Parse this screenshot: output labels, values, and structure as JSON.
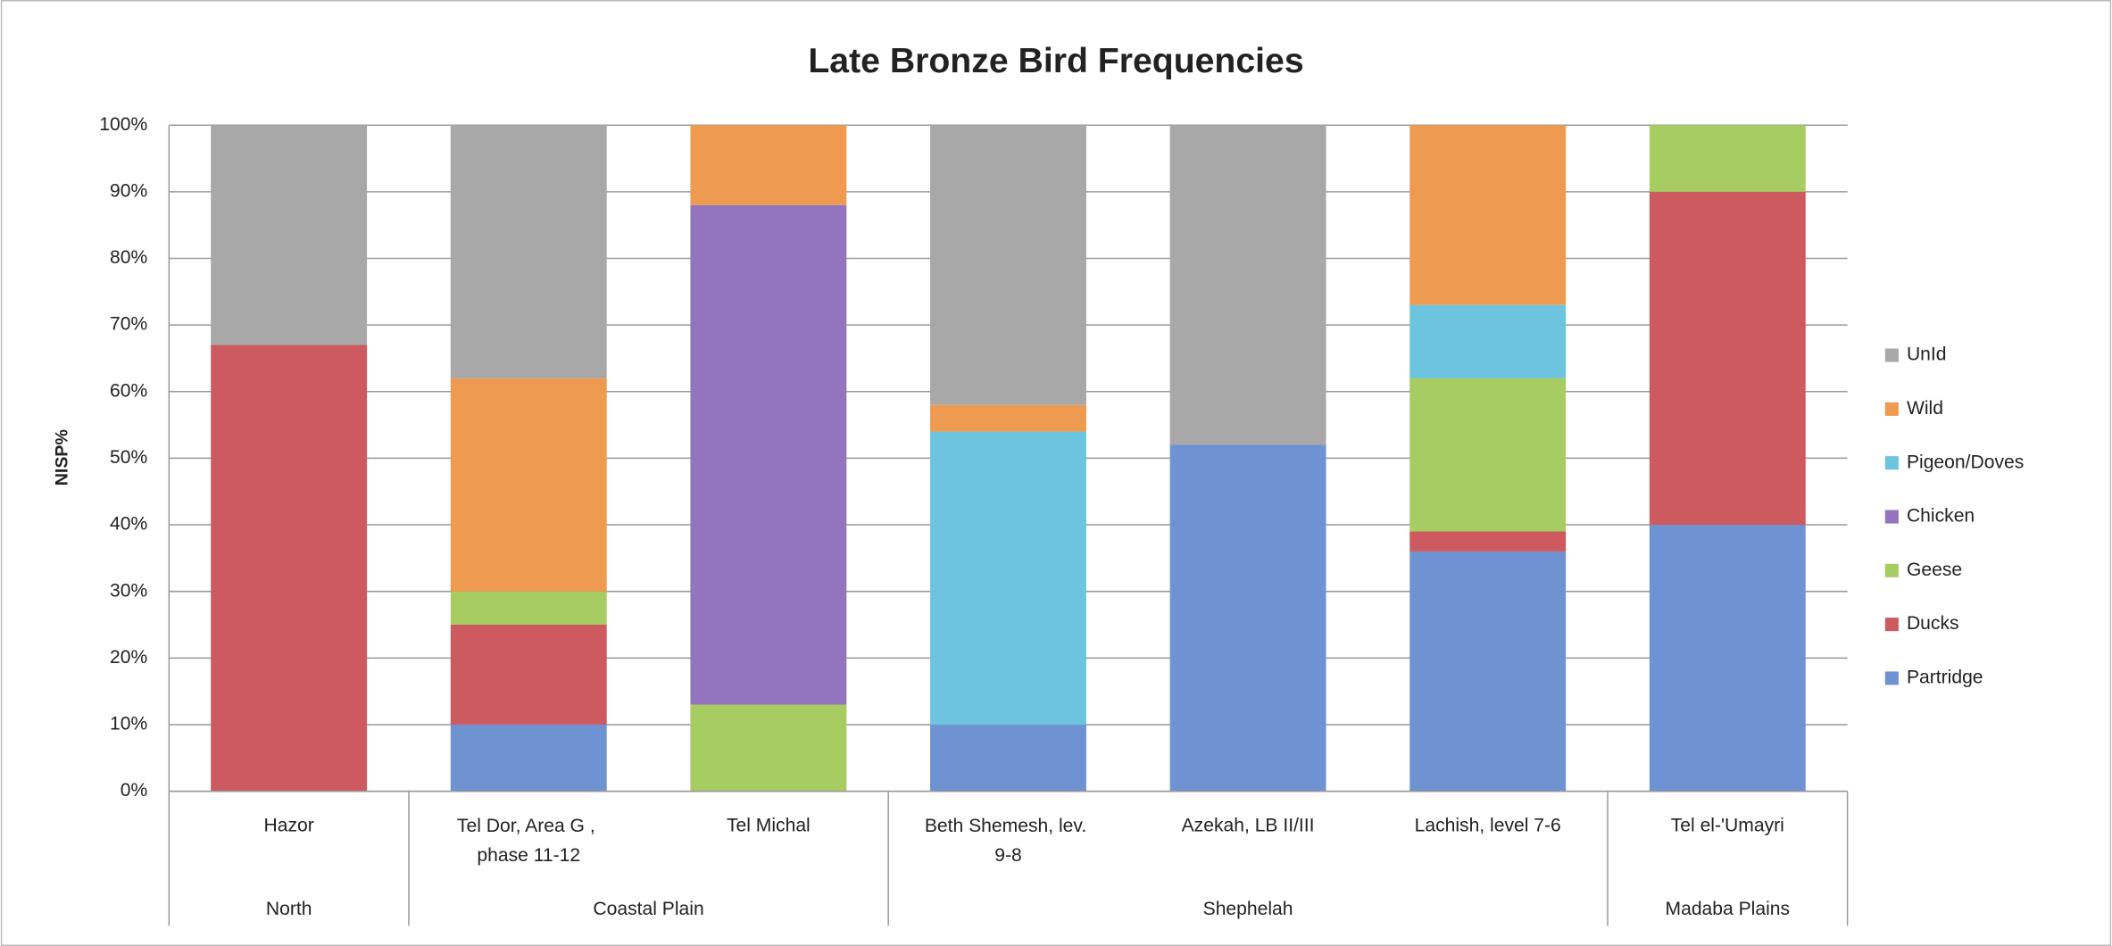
{
  "chart_data": {
    "type": "stacked_bar",
    "title": "Late Bronze Bird Frequencies",
    "y_label": "NISP%",
    "categories": [
      "Hazor",
      "Tel Dor, Area G , phase 11-12",
      "Tel Michal",
      "Beth Shemesh, lev. 9-8",
      "Azekah, LB II/III",
      "Lachish, level 7-6",
      "Tel el-'Umayri"
    ],
    "category_groups": [
      "North",
      "Coastal Plain",
      "Coastal Plain",
      "Shephelah",
      "Shephelah",
      "Shephelah",
      "Madaba Plains"
    ],
    "series": [
      {
        "name": "Partridge",
        "color": "#6f92d2",
        "values": [
          0,
          10,
          0,
          10,
          52,
          36,
          40
        ]
      },
      {
        "name": "Ducks",
        "color": "#cc5a5e",
        "values": [
          67,
          15,
          0,
          0,
          0,
          3,
          50
        ]
      },
      {
        "name": "Geese",
        "color": "#a6cc62",
        "values": [
          0,
          5,
          13,
          0,
          0,
          23,
          10
        ]
      },
      {
        "name": "Chicken",
        "color": "#9275bd",
        "values": [
          0,
          0,
          75,
          0,
          0,
          0,
          0
        ]
      },
      {
        "name": "Pigeon/Doves",
        "color": "#6cc4df",
        "values": [
          0,
          0,
          0,
          44,
          0,
          11,
          0
        ]
      },
      {
        "name": "Wild",
        "color": "#ee9a50",
        "values": [
          0,
          32,
          12,
          4,
          0,
          27,
          0
        ]
      },
      {
        "name": "UnId",
        "color": "#a8a8a8",
        "values": [
          33,
          38,
          0,
          42,
          48,
          0,
          0
        ]
      }
    ],
    "ylim": [
      0,
      100
    ],
    "yticks": [
      {
        "value": 0,
        "label": "0%"
      },
      {
        "value": 10,
        "label": "10%"
      },
      {
        "value": 20,
        "label": "20%"
      },
      {
        "value": 30,
        "label": "30%"
      },
      {
        "value": 40,
        "label": "40%"
      },
      {
        "value": 50,
        "label": "50%"
      },
      {
        "value": 60,
        "label": "60%"
      },
      {
        "value": 70,
        "label": "70%"
      },
      {
        "value": 80,
        "label": "80%"
      },
      {
        "value": 90,
        "label": "90%"
      },
      {
        "value": 100,
        "label": "100%"
      }
    ],
    "grid": true,
    "legend": "right"
  }
}
